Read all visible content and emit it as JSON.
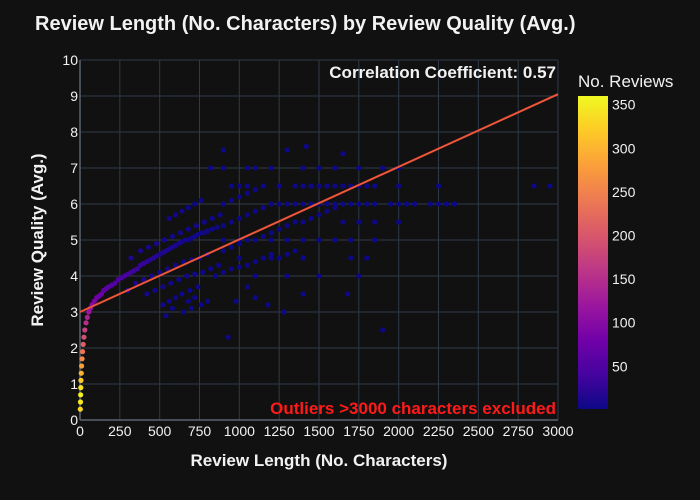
{
  "chart_data": {
    "type": "scatter",
    "title": "Review Length (No. Characters) by Review Quality (Avg.)",
    "xlabel": "Review Length (No. Characters)",
    "ylabel": "Review Quality (Avg.)",
    "xlim": [
      0,
      3000
    ],
    "ylim": [
      0,
      10
    ],
    "x_ticks": [
      0,
      250,
      500,
      750,
      1000,
      1250,
      1500,
      1750,
      2000,
      2250,
      2500,
      2750,
      3000
    ],
    "y_ticks": [
      0,
      1,
      2,
      3,
      4,
      5,
      6,
      7,
      8,
      9,
      10
    ],
    "grid": true,
    "colorbar": {
      "title": "No. Reviews",
      "ticks": [
        50,
        100,
        150,
        200,
        250,
        300,
        350
      ],
      "range": [
        1,
        360
      ],
      "colorscale": [
        "#0d0887",
        "#46039f",
        "#7201a8",
        "#9c179e",
        "#bd3786",
        "#d8576b",
        "#ed7953",
        "#fb9f3a",
        "#fdca26",
        "#f0f921"
      ]
    },
    "trendline": {
      "x": [
        0,
        3000
      ],
      "y": [
        3.0,
        9.05
      ],
      "color": "#ef553b"
    },
    "annotations": {
      "correlation": "Correlation Coefficient: 0.57",
      "outliers": "Outliers >3000 characters excluded"
    },
    "points": [
      [
        2,
        0.3,
        330
      ],
      [
        3,
        0.5,
        345
      ],
      [
        4,
        0.7,
        352
      ],
      [
        5,
        0.9,
        340
      ],
      [
        6,
        1.1,
        320
      ],
      [
        8,
        1.3,
        300
      ],
      [
        10,
        1.5,
        280
      ],
      [
        13,
        1.7,
        255
      ],
      [
        16,
        1.9,
        235
      ],
      [
        20,
        2.1,
        210
      ],
      [
        25,
        2.3,
        190
      ],
      [
        30,
        2.5,
        170
      ],
      [
        38,
        2.7,
        150
      ],
      [
        46,
        2.85,
        135
      ],
      [
        55,
        3.0,
        120
      ],
      [
        65,
        3.1,
        110
      ],
      [
        75,
        3.2,
        100
      ],
      [
        90,
        3.3,
        90
      ],
      [
        105,
        3.4,
        80
      ],
      [
        120,
        3.45,
        75
      ],
      [
        135,
        3.5,
        70
      ],
      [
        150,
        3.6,
        65
      ],
      [
        165,
        3.65,
        60
      ],
      [
        180,
        3.7,
        58
      ],
      [
        200,
        3.75,
        55
      ],
      [
        220,
        3.8,
        50
      ],
      [
        240,
        3.9,
        48
      ],
      [
        260,
        3.95,
        45
      ],
      [
        280,
        4.0,
        42
      ],
      [
        300,
        4.05,
        40
      ],
      [
        320,
        4.1,
        38
      ],
      [
        340,
        4.15,
        35
      ],
      [
        360,
        4.2,
        32
      ],
      [
        380,
        4.3,
        30
      ],
      [
        400,
        4.35,
        28
      ],
      [
        420,
        4.4,
        25
      ],
      [
        440,
        4.45,
        22
      ],
      [
        460,
        4.5,
        20
      ],
      [
        480,
        4.55,
        18
      ],
      [
        500,
        4.6,
        16
      ],
      [
        520,
        4.65,
        14
      ],
      [
        540,
        4.7,
        13
      ],
      [
        560,
        4.75,
        12
      ],
      [
        580,
        4.8,
        10
      ],
      [
        600,
        4.85,
        9
      ],
      [
        620,
        4.9,
        8
      ],
      [
        640,
        4.95,
        7
      ],
      [
        660,
        5.0,
        6
      ],
      [
        680,
        5.0,
        5
      ],
      [
        700,
        5.05,
        5
      ],
      [
        720,
        5.1,
        4
      ],
      [
        740,
        5.15,
        4
      ],
      [
        760,
        5.2,
        3
      ],
      [
        780,
        5.2,
        3
      ],
      [
        800,
        5.25,
        3
      ],
      [
        830,
        5.3,
        2
      ],
      [
        860,
        5.35,
        2
      ],
      [
        900,
        5.4,
        2
      ],
      [
        300,
        3.6,
        20
      ],
      [
        350,
        3.8,
        15
      ],
      [
        400,
        3.9,
        12
      ],
      [
        450,
        4.0,
        10
      ],
      [
        500,
        4.1,
        8
      ],
      [
        550,
        4.2,
        6
      ],
      [
        600,
        4.3,
        5
      ],
      [
        650,
        4.4,
        4
      ],
      [
        700,
        4.45,
        3
      ],
      [
        750,
        4.5,
        3
      ],
      [
        800,
        4.6,
        2
      ],
      [
        320,
        4.5,
        12
      ],
      [
        380,
        4.7,
        10
      ],
      [
        430,
        4.8,
        9
      ],
      [
        480,
        4.9,
        8
      ],
      [
        530,
        5.0,
        7
      ],
      [
        580,
        5.1,
        6
      ],
      [
        630,
        5.2,
        5
      ],
      [
        680,
        5.3,
        4
      ],
      [
        730,
        5.4,
        3
      ],
      [
        780,
        5.5,
        3
      ],
      [
        830,
        5.6,
        2
      ],
      [
        880,
        5.7,
        2
      ],
      [
        420,
        3.5,
        6
      ],
      [
        470,
        3.6,
        5
      ],
      [
        520,
        3.7,
        5
      ],
      [
        570,
        3.8,
        4
      ],
      [
        620,
        3.9,
        4
      ],
      [
        670,
        4.0,
        3
      ],
      [
        720,
        4.05,
        3
      ],
      [
        770,
        4.1,
        2
      ],
      [
        820,
        4.2,
        2
      ],
      [
        870,
        4.3,
        2
      ],
      [
        560,
        5.6,
        4
      ],
      [
        600,
        5.7,
        3
      ],
      [
        640,
        5.8,
        3
      ],
      [
        680,
        5.9,
        2
      ],
      [
        720,
        6.0,
        2
      ],
      [
        760,
        6.1,
        2
      ],
      [
        520,
        3.2,
        3
      ],
      [
        560,
        3.3,
        3
      ],
      [
        600,
        3.4,
        2
      ],
      [
        640,
        3.5,
        2
      ],
      [
        690,
        3.6,
        2
      ],
      [
        740,
        3.7,
        2
      ],
      [
        680,
        3.3,
        2
      ],
      [
        720,
        3.4,
        2
      ],
      [
        760,
        3.2,
        1
      ],
      [
        800,
        3.3,
        1
      ],
      [
        650,
        3.0,
        1
      ],
      [
        700,
        3.1,
        1
      ],
      [
        540,
        2.9,
        1
      ],
      [
        580,
        3.1,
        1
      ],
      [
        930,
        2.3,
        1
      ],
      [
        1280,
        3.0,
        1
      ],
      [
        1180,
        3.2,
        1
      ],
      [
        1680,
        3.5,
        1
      ],
      [
        1900,
        2.5,
        1
      ],
      [
        1400,
        3.5,
        1
      ],
      [
        1100,
        3.4,
        1
      ],
      [
        1050,
        3.7,
        1
      ],
      [
        980,
        3.3,
        1
      ],
      [
        850,
        4.0,
        1
      ],
      [
        900,
        4.1,
        1
      ],
      [
        950,
        4.2,
        1
      ],
      [
        1000,
        4.25,
        1
      ],
      [
        1050,
        4.3,
        1
      ],
      [
        1100,
        4.4,
        1
      ],
      [
        1150,
        4.5,
        1
      ],
      [
        1200,
        4.6,
        1
      ],
      [
        1250,
        4.5,
        1
      ],
      [
        1300,
        4.6,
        1
      ],
      [
        1350,
        4.7,
        1
      ],
      [
        900,
        4.7,
        1
      ],
      [
        950,
        4.8,
        1
      ],
      [
        1000,
        4.9,
        1
      ],
      [
        1050,
        5.0,
        1
      ],
      [
        1100,
        5.0,
        1
      ],
      [
        1150,
        5.1,
        1
      ],
      [
        1200,
        5.2,
        1
      ],
      [
        1250,
        5.3,
        1
      ],
      [
        1300,
        5.4,
        1
      ],
      [
        1350,
        5.5,
        1
      ],
      [
        1400,
        5.5,
        1
      ],
      [
        1450,
        5.6,
        1
      ],
      [
        1500,
        5.7,
        1
      ],
      [
        1550,
        5.8,
        1
      ],
      [
        1600,
        5.9,
        1
      ],
      [
        1650,
        6.0,
        1
      ],
      [
        950,
        5.5,
        1
      ],
      [
        1000,
        5.6,
        1
      ],
      [
        1050,
        5.7,
        1
      ],
      [
        1100,
        5.8,
        1
      ],
      [
        1150,
        5.9,
        1
      ],
      [
        1200,
        6.0,
        1
      ],
      [
        900,
        6.0,
        1
      ],
      [
        950,
        6.1,
        1
      ],
      [
        1000,
        6.2,
        1
      ],
      [
        1050,
        6.3,
        1
      ],
      [
        1100,
        6.4,
        1
      ],
      [
        1250,
        6.0,
        1
      ],
      [
        1300,
        6.0,
        1
      ],
      [
        1350,
        6.0,
        1
      ],
      [
        1400,
        6.0,
        1
      ],
      [
        1450,
        6.0,
        1
      ],
      [
        1500,
        6.0,
        1
      ],
      [
        1550,
        6.0,
        1
      ],
      [
        1600,
        6.0,
        1
      ],
      [
        1700,
        6.0,
        1
      ],
      [
        1750,
        6.0,
        1
      ],
      [
        1800,
        6.0,
        1
      ],
      [
        1850,
        6.0,
        1
      ],
      [
        1950,
        6.0,
        1
      ],
      [
        2000,
        6.0,
        1
      ],
      [
        2050,
        6.0,
        1
      ],
      [
        2100,
        6.0,
        1
      ],
      [
        2200,
        6.0,
        1
      ],
      [
        2250,
        6.0,
        1
      ],
      [
        2300,
        6.0,
        1
      ],
      [
        2350,
        6.0,
        1
      ],
      [
        950,
        6.5,
        1
      ],
      [
        1000,
        6.5,
        1
      ],
      [
        1050,
        6.5,
        1
      ],
      [
        1150,
        6.5,
        1
      ],
      [
        1250,
        6.5,
        1
      ],
      [
        1350,
        6.5,
        1
      ],
      [
        1400,
        6.5,
        1
      ],
      [
        1450,
        6.5,
        1
      ],
      [
        1500,
        6.5,
        1
      ],
      [
        1550,
        6.5,
        1
      ],
      [
        1600,
        6.5,
        1
      ],
      [
        1650,
        6.5,
        1
      ],
      [
        1700,
        6.5,
        1
      ],
      [
        1750,
        6.5,
        1
      ],
      [
        1800,
        6.5,
        1
      ],
      [
        1850,
        6.5,
        1
      ],
      [
        2000,
        6.5,
        1
      ],
      [
        2250,
        6.5,
        1
      ],
      [
        2850,
        6.5,
        1
      ],
      [
        2950,
        6.5,
        1
      ],
      [
        820,
        7.0,
        1
      ],
      [
        900,
        7.0,
        1
      ],
      [
        1050,
        7.0,
        1
      ],
      [
        1100,
        7.0,
        1
      ],
      [
        1200,
        7.0,
        1
      ],
      [
        1400,
        7.0,
        1
      ],
      [
        1500,
        7.0,
        1
      ],
      [
        1600,
        7.0,
        1
      ],
      [
        1900,
        7.0,
        1
      ],
      [
        1750,
        7.0,
        1
      ],
      [
        900,
        7.5,
        1
      ],
      [
        1300,
        7.5,
        1
      ],
      [
        1650,
        7.4,
        1
      ],
      [
        1420,
        7.6,
        1
      ],
      [
        900,
        5.0,
        1
      ],
      [
        1000,
        5.0,
        1
      ],
      [
        1100,
        5.0,
        1
      ],
      [
        1200,
        5.0,
        1
      ],
      [
        1300,
        5.0,
        1
      ],
      [
        1400,
        5.0,
        1
      ],
      [
        1500,
        5.0,
        1
      ],
      [
        1600,
        5.0,
        1
      ],
      [
        1700,
        5.0,
        1
      ],
      [
        1850,
        5.0,
        1
      ],
      [
        1000,
        4.5,
        1
      ],
      [
        1200,
        4.5,
        1
      ],
      [
        1400,
        4.5,
        1
      ],
      [
        1700,
        4.5,
        1
      ],
      [
        1800,
        4.5,
        1
      ],
      [
        1100,
        4.0,
        1
      ],
      [
        1300,
        4.0,
        1
      ],
      [
        1500,
        4.0,
        1
      ],
      [
        1750,
        4.0,
        1
      ],
      [
        2000,
        5.5,
        1
      ],
      [
        2000,
        7.0,
        1
      ],
      [
        2100,
        6.0,
        1
      ],
      [
        2350,
        6.0,
        1
      ],
      [
        1850,
        5.5,
        1
      ],
      [
        1750,
        5.5,
        1
      ],
      [
        1650,
        5.5,
        1
      ]
    ]
  }
}
